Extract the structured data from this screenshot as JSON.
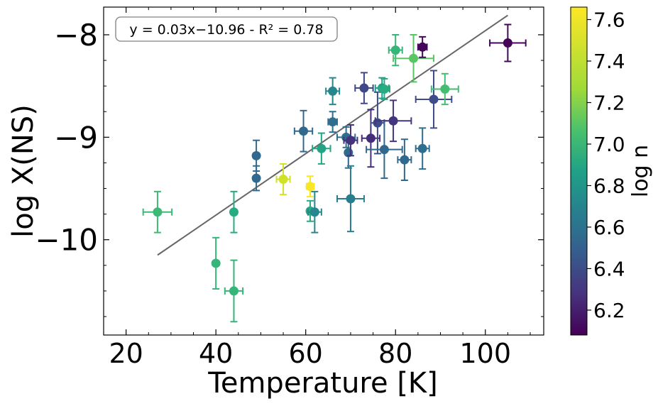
{
  "chart_data": {
    "type": "scatter",
    "xlabel": "Temperature [K]",
    "ylabel": "log X(NS)",
    "xlim": [
      15,
      113
    ],
    "ylim": [
      -10.93,
      -7.73
    ],
    "xticks": [
      20,
      40,
      60,
      80,
      100
    ],
    "xtick_labels": [
      "20",
      "40",
      "60",
      "80",
      "100"
    ],
    "yticks": [
      -10,
      -9,
      -8
    ],
    "ytick_labels": [
      "−10",
      "−9",
      "−8"
    ],
    "annotation": "y = 0.03x−10.96 - R² = 0.78",
    "fit_line": {
      "slope": 0.03,
      "intercept": -10.96,
      "x_range": [
        27,
        105
      ],
      "color": "#666666"
    },
    "colorbar": {
      "label": "log n",
      "range": [
        6.08,
        7.66
      ],
      "ticks": [
        6.2,
        6.4,
        6.6,
        6.8,
        7.0,
        7.2,
        7.4,
        7.6
      ],
      "tick_labels": [
        "6.2",
        "6.4",
        "6.6",
        "6.8",
        "7.0",
        "7.2",
        "7.4",
        "7.6"
      ]
    },
    "points": [
      {
        "x": 27,
        "y": -9.73,
        "xerr": 3.2,
        "yerr": 0.2,
        "c": 7.15
      },
      {
        "x": 40,
        "y": -10.23,
        "xerr": 0,
        "yerr": 0.25,
        "c": 7.12
      },
      {
        "x": 44,
        "y": -10.5,
        "xerr": 2,
        "yerr": 0.3,
        "c": 7.12
      },
      {
        "x": 44,
        "y": -9.73,
        "xerr": 0,
        "yerr": 0.2,
        "c": 7.05
      },
      {
        "x": 49,
        "y": -9.18,
        "xerr": 0,
        "yerr": 0.15,
        "c": 6.62
      },
      {
        "x": 49,
        "y": -9.4,
        "xerr": 0,
        "yerr": 0.12,
        "c": 6.62
      },
      {
        "x": 55,
        "y": -9.41,
        "xerr": 1.5,
        "yerr": 0.15,
        "c": 7.55
      },
      {
        "x": 59.5,
        "y": -8.94,
        "xerr": 2,
        "yerr": 0.2,
        "c": 6.62
      },
      {
        "x": 61,
        "y": -9.48,
        "xerr": 0.8,
        "yerr": 0.1,
        "c": 7.65
      },
      {
        "x": 61,
        "y": -9.72,
        "xerr": 0,
        "yerr": 0.1,
        "c": 7.05
      },
      {
        "x": 62,
        "y": -9.73,
        "xerr": 1.5,
        "yerr": 0.2,
        "c": 6.8
      },
      {
        "x": 63.5,
        "y": -9.11,
        "xerr": 2,
        "yerr": 0.15,
        "c": 7.0
      },
      {
        "x": 66,
        "y": -8.55,
        "xerr": 1.5,
        "yerr": 0.13,
        "c": 6.8
      },
      {
        "x": 66,
        "y": -8.85,
        "xerr": 1,
        "yerr": 0.1,
        "c": 6.65
      },
      {
        "x": 69,
        "y": -9.0,
        "xerr": 2,
        "yerr": 0.1,
        "c": 6.65
      },
      {
        "x": 69.5,
        "y": -9.15,
        "xerr": 0,
        "yerr": 0.15,
        "c": 6.62
      },
      {
        "x": 70,
        "y": -9.6,
        "xerr": 3,
        "yerr": 0.32,
        "c": 6.75
      },
      {
        "x": 70,
        "y": -9.03,
        "xerr": 1.5,
        "yerr": 0.15,
        "c": 6.3
      },
      {
        "x": 73,
        "y": -8.52,
        "xerr": 2,
        "yerr": 0.15,
        "c": 6.42
      },
      {
        "x": 74.5,
        "y": -9.01,
        "xerr": 2,
        "yerr": 0.28,
        "c": 6.28
      },
      {
        "x": 76,
        "y": -8.86,
        "xerr": 1.5,
        "yerr": 0.3,
        "c": 6.45
      },
      {
        "x": 77,
        "y": -8.52,
        "xerr": 1.5,
        "yerr": 0.1,
        "c": 6.95
      },
      {
        "x": 77.5,
        "y": -8.53,
        "xerr": 1.2,
        "yerr": 0.1,
        "c": 7.05
      },
      {
        "x": 77.5,
        "y": -9.12,
        "xerr": 4,
        "yerr": 0.28,
        "c": 6.62
      },
      {
        "x": 79.5,
        "y": -8.84,
        "xerr": 4,
        "yerr": 0.2,
        "c": 6.32
      },
      {
        "x": 80,
        "y": -8.15,
        "xerr": 1.5,
        "yerr": 0.15,
        "c": 7.12
      },
      {
        "x": 82,
        "y": -9.22,
        "xerr": 1.5,
        "yerr": 0.2,
        "c": 6.62
      },
      {
        "x": 84,
        "y": -8.23,
        "xerr": 4.5,
        "yerr": 0.23,
        "c": 7.25
      },
      {
        "x": 86,
        "y": -8.12,
        "xerr": 1,
        "yerr": 0.1,
        "c": 6.1
      },
      {
        "x": 86,
        "y": -9.11,
        "xerr": 1.5,
        "yerr": 0.2,
        "c": 6.65
      },
      {
        "x": 88.5,
        "y": -8.63,
        "xerr": 4,
        "yerr": 0.28,
        "c": 6.45
      },
      {
        "x": 91,
        "y": -8.53,
        "xerr": 3,
        "yerr": 0.15,
        "c": 7.18
      },
      {
        "x": 105,
        "y": -8.08,
        "xerr": 4,
        "yerr": 0.18,
        "c": 6.1
      }
    ]
  }
}
